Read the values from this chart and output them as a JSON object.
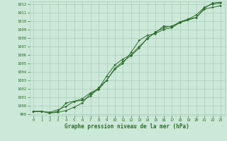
{
  "title": "Graphe pression niveau de la mer (hPa)",
  "bg_color": "#cce8d8",
  "grid_color": "#aacebb",
  "line_color": "#2d6e2d",
  "text_color": "#2d6e2d",
  "xlim": [
    -0.5,
    23.5
  ],
  "ylim": [
    998.8,
    1012.3
  ],
  "xticks": [
    0,
    1,
    2,
    3,
    4,
    5,
    6,
    7,
    8,
    9,
    10,
    11,
    12,
    13,
    14,
    15,
    16,
    17,
    18,
    19,
    20,
    21,
    22,
    23
  ],
  "yticks": [
    999,
    1000,
    1001,
    1002,
    1003,
    1004,
    1005,
    1006,
    1007,
    1008,
    1009,
    1010,
    1011,
    1012
  ],
  "series": [
    [
      999.3,
      999.3,
      999.1,
      999.2,
      999.4,
      999.8,
      1000.3,
      1001.4,
      1001.9,
      1003.0,
      1004.3,
      1005.0,
      1006.3,
      1007.7,
      1008.3,
      1008.5,
      1009.0,
      1009.2,
      1009.8,
      1010.1,
      1010.4,
      1011.4,
      1011.6,
      1011.8
    ],
    [
      999.3,
      999.3,
      999.2,
      999.5,
      999.9,
      1000.5,
      1000.8,
      1001.5,
      1002.0,
      1003.5,
      1004.8,
      1005.5,
      1006.0,
      1007.0,
      1007.9,
      1008.7,
      1009.2,
      1009.4,
      1009.8,
      1010.2,
      1010.7,
      1011.6,
      1012.0,
      1012.1
    ],
    [
      999.3,
      999.3,
      999.1,
      999.3,
      1000.3,
      1000.5,
      1000.6,
      1001.1,
      1002.1,
      1003.0,
      1004.4,
      1005.2,
      1005.9,
      1006.8,
      1008.0,
      1008.6,
      1009.4,
      1009.3,
      1009.9,
      1010.2,
      1010.4,
      1011.5,
      1012.1,
      1012.2
    ]
  ],
  "tick_fontsize": 4.0,
  "label_fontsize": 5.5,
  "linewidth": 0.7,
  "markersize": 2.0
}
